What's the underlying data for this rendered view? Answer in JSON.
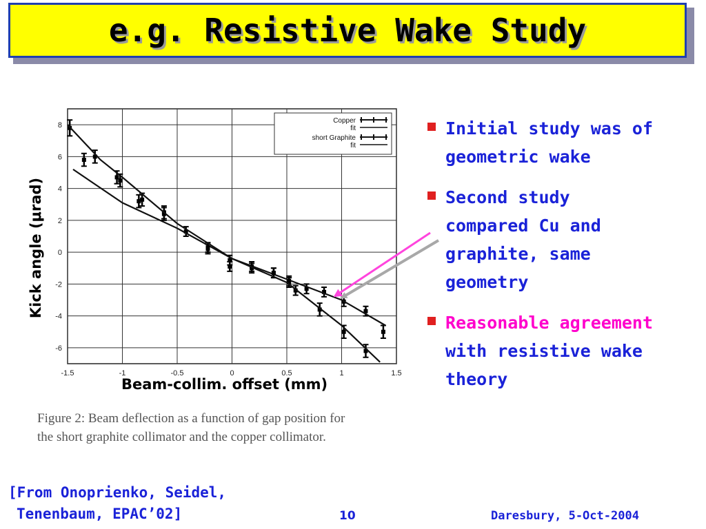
{
  "slide": {
    "title": "e.g. Resistive Wake Study",
    "ylabel": "Kick angle (μrad)",
    "xlabel": "Beam-collim. offset (mm)",
    "caption_line1": "Figure 2: Beam deflection as a function of gap position for",
    "caption_line2": "the short graphite collimator and the copper collimator.",
    "bullets": [
      {
        "lines": [
          "Initial study was of",
          "geometric wake"
        ]
      },
      {
        "lines": [
          "Second study",
          "compared Cu and",
          "graphite, same",
          "geometry"
        ]
      },
      {
        "highlight": "Reasonable agreement",
        "lines": [
          "with resistive wake",
          "theory"
        ]
      }
    ],
    "source_line1": "[From Onoprienko, Seidel,",
    "source_line2": "Tenenbaum, EPAC’02]",
    "page_number": "10",
    "footer": "Daresbury, 5-Oct-2004",
    "colors": {
      "title_bg": "#ffff00",
      "title_border": "#1f3fb0",
      "text_blue": "#1a22d8",
      "highlight": "#ff00cc",
      "bullet": "#e02020",
      "arrow_magenta": "#ff44dd",
      "arrow_gray": "#a8a8a8"
    }
  },
  "chart_data": {
    "type": "scatter",
    "xlim": [
      -1.5,
      1.5
    ],
    "ylim": [
      -7,
      9
    ],
    "xticks": [
      "-1.5",
      "-1",
      "-0.5",
      "0",
      "0.5",
      "1",
      "1.5"
    ],
    "xtick_values": [
      -1.5,
      -1,
      -0.5,
      0,
      0.5,
      1,
      1.5
    ],
    "yticks": [
      "8",
      "6",
      "4",
      "2",
      "0",
      "-2",
      "-4",
      "-6"
    ],
    "ytick_values": [
      8,
      6,
      4,
      2,
      0,
      -2,
      -4,
      -6
    ],
    "grid": true,
    "legend_position": "top-right",
    "series": [
      {
        "name": "Copper",
        "style": "points",
        "points": [
          [
            -1.35,
            5.8
          ],
          [
            -1.05,
            4.7
          ],
          [
            -0.85,
            3.2
          ],
          [
            -0.62,
            2.5
          ],
          [
            -0.42,
            1.3
          ],
          [
            -0.22,
            0.2
          ],
          [
            -0.02,
            -0.5
          ],
          [
            0.18,
            -0.9
          ],
          [
            0.38,
            -1.3
          ],
          [
            0.52,
            -1.9
          ],
          [
            0.68,
            -2.3
          ],
          [
            0.84,
            -2.5
          ],
          [
            1.02,
            -3.1
          ],
          [
            1.22,
            -3.7
          ],
          [
            1.38,
            -5.0
          ]
        ],
        "errors": [
          0.4,
          0.4,
          0.4,
          0.4,
          0.3,
          0.3,
          0.3,
          0.3,
          0.3,
          0.3,
          0.3,
          0.3,
          0.3,
          0.3,
          0.4
        ]
      },
      {
        "name": "fit",
        "style": "line",
        "points": [
          [
            -1.45,
            5.2
          ],
          [
            -1.0,
            3.1
          ],
          [
            -0.5,
            1.5
          ],
          [
            0.0,
            -0.4
          ],
          [
            0.5,
            -1.7
          ],
          [
            1.0,
            -3.0
          ],
          [
            1.4,
            -4.6
          ]
        ]
      },
      {
        "name": "short Graphite",
        "style": "points",
        "points": [
          [
            -1.48,
            7.8
          ],
          [
            -1.25,
            6.0
          ],
          [
            -1.02,
            4.5
          ],
          [
            -0.82,
            3.3
          ],
          [
            -0.62,
            2.4
          ],
          [
            -0.22,
            0.3
          ],
          [
            -0.02,
            -0.9
          ],
          [
            0.18,
            -1.0
          ],
          [
            0.38,
            -1.3
          ],
          [
            0.52,
            -1.8
          ],
          [
            0.58,
            -2.4
          ],
          [
            0.8,
            -3.6
          ],
          [
            1.02,
            -5.0
          ],
          [
            1.22,
            -6.2
          ]
        ],
        "errors": [
          0.5,
          0.4,
          0.4,
          0.4,
          0.4,
          0.3,
          0.3,
          0.3,
          0.3,
          0.3,
          0.3,
          0.4,
          0.4,
          0.4
        ]
      },
      {
        "name": "fit",
        "style": "line",
        "points": [
          [
            -1.5,
            8.0
          ],
          [
            -1.2,
            5.8
          ],
          [
            -1.0,
            4.7
          ],
          [
            -0.5,
            1.8
          ],
          [
            0.0,
            -0.4
          ],
          [
            0.5,
            -1.9
          ],
          [
            1.0,
            -4.6
          ],
          [
            1.35,
            -6.9
          ]
        ]
      }
    ]
  }
}
